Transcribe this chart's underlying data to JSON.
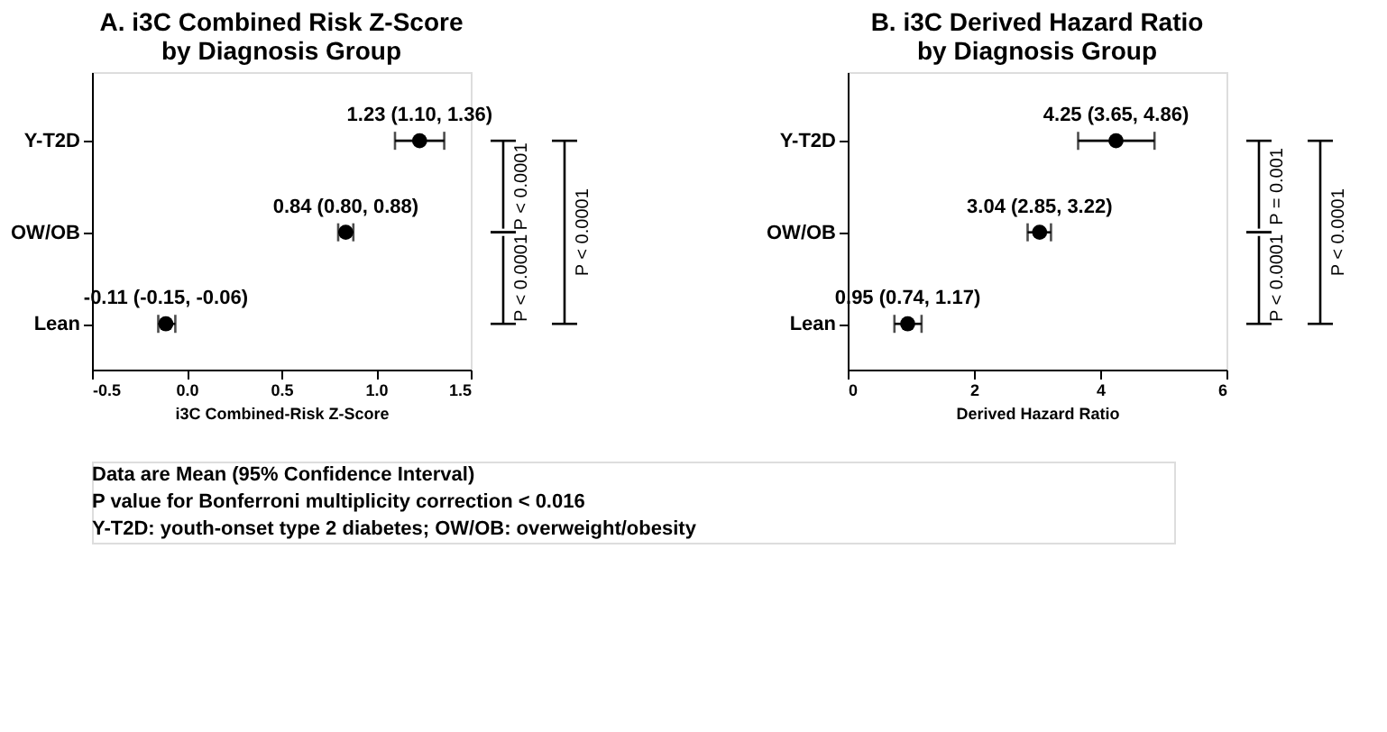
{
  "chart_data": [
    {
      "type": "scatter",
      "orientation": "horizontal",
      "title": "A. i3C Combined Risk Z-Score\nby Diagnosis Group",
      "xlabel": "i3C Combined-Risk Z-Score",
      "categories": [
        "Y-T2D",
        "OW/OB",
        "Lean"
      ],
      "series": [
        {
          "color": "#000000",
          "values": [
            1.23,
            0.84,
            -0.11
          ],
          "errors": [
            [
              1.1,
              1.36
            ],
            [
              0.8,
              0.88
            ],
            [
              -0.15,
              -0.06
            ]
          ],
          "value_labels": [
            "1.23 (1.10, 1.36)",
            "0.84 (0.80, 0.88)",
            "-0.11 (-0.15, -0.06)"
          ]
        }
      ],
      "marker": "circle",
      "grid": false,
      "xlim": [
        -0.5,
        1.5
      ],
      "xticks": [
        {
          "value": -0.5,
          "label": "-0.5"
        },
        {
          "value": 0,
          "label": "0.0"
        },
        {
          "value": 0.5,
          "label": "0.5"
        },
        {
          "value": 1,
          "label": "1.0"
        },
        {
          "value": 1.5,
          "label": "1.5"
        }
      ],
      "annotations": [
        "P < 0.0001",
        "P < 0.0001",
        "P < 0.0001"
      ]
    },
    {
      "type": "scatter",
      "orientation": "horizontal",
      "title": "B. i3C Derived Hazard Ratio\nby Diagnosis Group",
      "xlabel": "Derived Hazard Ratio",
      "categories": [
        "Y-T2D",
        "OW/OB",
        "Lean"
      ],
      "series": [
        {
          "color": "#000000",
          "values": [
            4.25,
            3.04,
            0.95
          ],
          "errors": [
            [
              3.65,
              4.86
            ],
            [
              2.85,
              3.22
            ],
            [
              0.74,
              1.17
            ]
          ],
          "value_labels": [
            "4.25 (3.65, 4.86)",
            "3.04 (2.85, 3.22)",
            "0.95 (0.74, 1.17)"
          ]
        }
      ],
      "marker": "circle",
      "grid": false,
      "xlim": [
        0,
        6
      ],
      "xticks": [
        0,
        2,
        4,
        6
      ],
      "annotations": [
        "P = 0.001",
        "P < 0.0001",
        "P < 0.0001",
        "Data are Mean (95% Confidence Interval)",
        "P value for Bonferroni multiplicity correction < 0.016",
        "Y-T2D: youth-onset type 2 diabetes; OW/OB: overweight/obesity"
      ]
    }
  ]
}
